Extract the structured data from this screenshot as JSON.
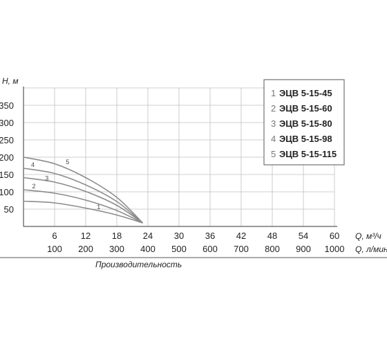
{
  "chart_data": {
    "type": "line",
    "ylabel": "H, м",
    "xlabel": "Q, м³/ч",
    "xlabel_secondary": "Q, л/мин",
    "caption": "Производительность",
    "ylim": [
      0,
      400
    ],
    "xlim": [
      0,
      60
    ],
    "yticks": [
      50,
      100,
      150,
      200,
      250,
      300,
      350
    ],
    "xticks": [
      6,
      12,
      18,
      24,
      30,
      36,
      42,
      48,
      54,
      60
    ],
    "xticks_secondary": [
      100,
      200,
      300,
      400,
      500,
      600,
      700,
      800,
      900,
      1000
    ],
    "grid": true,
    "legend_position": "top-right",
    "series": [
      {
        "id": "1",
        "name": "ЭЦВ 5-15-45",
        "x": [
          0,
          6,
          12,
          18,
          23
        ],
        "y": [
          73,
          68,
          53,
          33,
          10
        ]
      },
      {
        "id": "2",
        "name": "ЭЦВ 5-15-60",
        "x": [
          0,
          6,
          12,
          18,
          23
        ],
        "y": [
          106,
          96,
          76,
          46,
          10
        ]
      },
      {
        "id": "3",
        "name": "ЭЦВ 5-15-80",
        "x": [
          0,
          6,
          12,
          18,
          23
        ],
        "y": [
          141,
          128,
          101,
          61,
          10
        ]
      },
      {
        "id": "4",
        "name": "ЭЦВ 5-15-98",
        "x": [
          0,
          6,
          12,
          18,
          23
        ],
        "y": [
          168,
          153,
          120,
          72,
          10
        ]
      },
      {
        "id": "5",
        "name": "ЭЦВ 5-15-115",
        "x": [
          0,
          6,
          12,
          18,
          23
        ],
        "y": [
          200,
          181,
          141,
          84,
          10
        ]
      }
    ],
    "colors": {
      "grid": "#bfbfbf",
      "axis": "#333333",
      "curve": "#8c8c8c",
      "legend_border": "#555555"
    }
  }
}
